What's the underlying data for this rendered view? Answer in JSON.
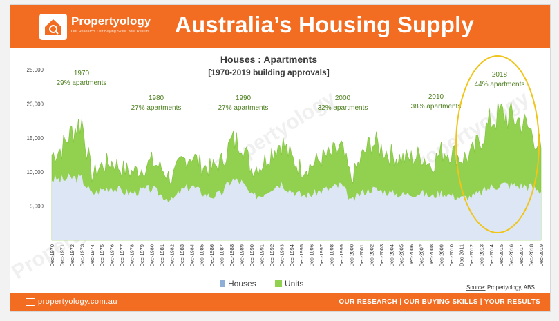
{
  "header": {
    "brand": "Propertyology",
    "tagline": "Our Research. Our Buying Skills. Your Results",
    "title": "Australia’s Housing Supply"
  },
  "footer": {
    "site": "propertyology.com.au",
    "tagline": "OUR RESEARCH | OUR BUYING SKILLS | YOUR RESULTS"
  },
  "watermark": "Propertyology",
  "colors": {
    "orange": "#f26c21",
    "houses_fill": "#dde6f5",
    "houses_legend": "#8eaed8",
    "units": "#92d050",
    "highlight": "#f0c419"
  },
  "chart_data": {
    "type": "area",
    "title": "Houses : Apartments",
    "subtitle": "[1970-2019 building approvals]",
    "ylim": [
      0,
      25000
    ],
    "yticks": [
      5000,
      10000,
      15000,
      20000,
      25000
    ],
    "ytick_labels": [
      "5,000",
      "10,000",
      "15,000",
      "20,000",
      "25,000"
    ],
    "x_labels": [
      "Dec-1970",
      "Dec-1971",
      "Dec-1972",
      "Dec-1973",
      "Dec-1974",
      "Dec-1975",
      "Dec-1976",
      "Dec-1977",
      "Dec-1978",
      "Dec-1979",
      "Dec-1980",
      "Dec-1981",
      "Dec-1982",
      "Dec-1983",
      "Dec-1984",
      "Dec-1985",
      "Dec-1986",
      "Dec-1987",
      "Dec-1988",
      "Dec-1989",
      "Dec-1990",
      "Dec-1991",
      "Dec-1992",
      "Dec-1993",
      "Dec-1994",
      "Dec-1995",
      "Dec-1996",
      "Dec-1997",
      "Dec-1998",
      "Dec-1999",
      "Dec-2000",
      "Dec-2001",
      "Dec-2002",
      "Dec-2003",
      "Dec-2004",
      "Dec-2005",
      "Dec-2006",
      "Dec-2007",
      "Dec-2008",
      "Dec-2009",
      "Dec-2010",
      "Dec-2011",
      "Dec-2012",
      "Dec-2013",
      "Dec-2014",
      "Dec-2015",
      "Dec-2016",
      "Dec-2017",
      "Dec-2018",
      "Dec-2019"
    ],
    "series": [
      {
        "name": "Houses",
        "color": "#dde6f5",
        "values": [
          9000,
          8800,
          9200,
          9000,
          6800,
          7400,
          7800,
          7200,
          6900,
          7300,
          7600,
          6600,
          5800,
          7300,
          8000,
          7000,
          6400,
          6900,
          8900,
          8500,
          6500,
          6600,
          7800,
          8400,
          7300,
          6600,
          6700,
          7300,
          7600,
          8100,
          5700,
          7000,
          7500,
          7300,
          6900,
          6700,
          6800,
          7000,
          6400,
          7000,
          6600,
          6200,
          6400,
          7000,
          7800,
          8200,
          8100,
          8000,
          7900,
          7100
        ]
      },
      {
        "name": "Units",
        "color": "#92d050",
        "values": [
          12500,
          13500,
          16000,
          17500,
          9500,
          11000,
          11500,
          10500,
          10000,
          10500,
          11500,
          10500,
          9000,
          11500,
          12500,
          11000,
          10500,
          11500,
          14500,
          14500,
          10500,
          11000,
          13000,
          14500,
          12000,
          10500,
          11000,
          12000,
          12500,
          13500,
          9000,
          12000,
          14500,
          13500,
          12500,
          12000,
          12000,
          12500,
          11000,
          13000,
          13000,
          12000,
          12500,
          15000,
          17500,
          18500,
          18000,
          17500,
          16000,
          13500
        ]
      }
    ],
    "annotations": [
      {
        "year": "1970",
        "text": "29% apartments"
      },
      {
        "year": "1980",
        "text": "27% apartments"
      },
      {
        "year": "1990",
        "text": "27% apartments"
      },
      {
        "year": "2000",
        "text": "32% apartments"
      },
      {
        "year": "2010",
        "text": "38% apartments"
      },
      {
        "year": "2018",
        "text": "44% apartments"
      }
    ],
    "legend_position": "bottom",
    "source_label": "Source:",
    "source_text": "Propertyology, ABS"
  }
}
